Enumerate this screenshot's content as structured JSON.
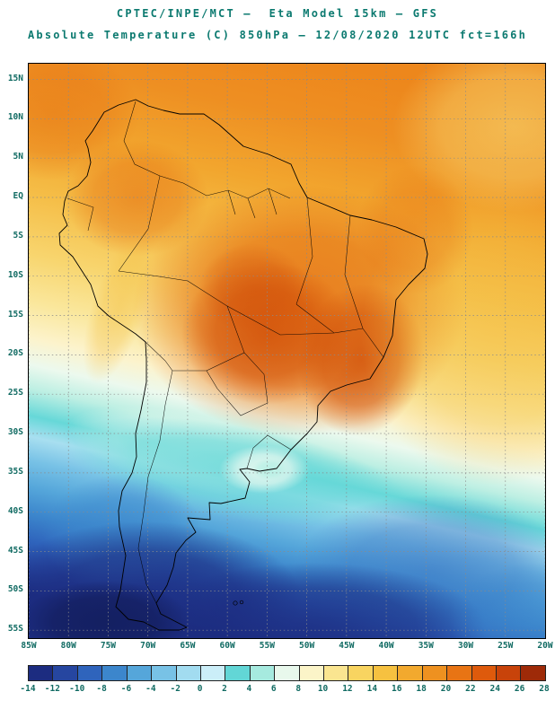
{
  "title": {
    "line1": "CPTEC/INPE/MCT —  Eta Model 15km — GFS",
    "line2": "Absolute Temperature (C) 850hPa — 12/08/2020 12UTC fct=166h"
  },
  "chart_data": {
    "type": "heatmap",
    "title": "CPTEC/INPE/MCT — Eta Model 15km — GFS",
    "subtitle": "Absolute Temperature (C) 850hPa — 12/08/2020 12UTC fct=166h",
    "variable": "Absolute Temperature (C) 850hPa",
    "valid_time": "12/08/2020 12UTC",
    "forecast": "fct=166h",
    "region": "South America",
    "lat_ticks": [
      "15N",
      "10N",
      "5N",
      "EQ",
      "5S",
      "10S",
      "15S",
      "20S",
      "25S",
      "30S",
      "35S",
      "40S",
      "45S",
      "50S",
      "55S"
    ],
    "lon_ticks": [
      "85W",
      "80W",
      "75W",
      "70W",
      "65W",
      "60W",
      "55W",
      "50W",
      "45W",
      "40W",
      "35W",
      "30W",
      "25W",
      "20W"
    ],
    "colorbar": {
      "unit": "C",
      "levels": [
        -14,
        -12,
        -10,
        -8,
        -6,
        -4,
        -2,
        0,
        2,
        4,
        6,
        8,
        10,
        12,
        14,
        16,
        18,
        20,
        22,
        24,
        26,
        28
      ],
      "colors": [
        "#1C2C80",
        "#2646A0",
        "#2F64BC",
        "#3C86CC",
        "#55A6DA",
        "#78C2E6",
        "#A2DCF0",
        "#CBEEF8",
        "#62D6D6",
        "#A6EADF",
        "#E8F8EC",
        "#FBF4C8",
        "#FAE590",
        "#F8D460",
        "#F6C140",
        "#F2A92E",
        "#EE9120",
        "#E87414",
        "#DE5A0C",
        "#C8430A",
        "#9E2A08"
      ]
    },
    "approx_field_values_c": [
      {
        "region": "Central Brazil warm core (10S-20S)",
        "value": "22 to 26"
      },
      {
        "region": "Amazon / Colombia / Venezuela / Caribbean",
        "value": "18 to 22"
      },
      {
        "region": "Tropical Atlantic north of 20S",
        "value": "14 to 20"
      },
      {
        "region": "Southeast Brazil coast (25S-30S)",
        "value": "8 to 14"
      },
      {
        "region": "Uruguay / Rio de la Plata pocket",
        "value": "2 to 6"
      },
      {
        "region": "Central Argentina and Chile coast 30S-38S",
        "value": "0 to 4"
      },
      {
        "region": "Patagonia (45S-55S)",
        "value": "-6 to -12"
      },
      {
        "region": "Far south oceans near 55S",
        "value": "-10 to -14"
      }
    ],
    "grid": "dashed 5-degree graticule",
    "legend_position": "bottom horizontal colorbar"
  }
}
